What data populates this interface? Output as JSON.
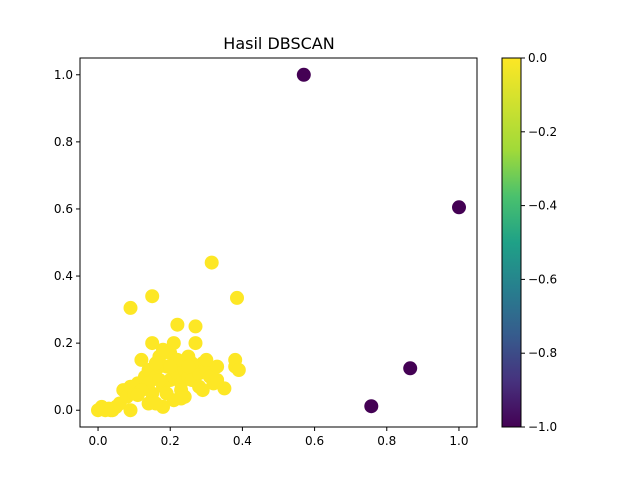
{
  "chart_data": {
    "type": "scatter",
    "title": "Hasil DBSCAN",
    "xlabel": "",
    "ylabel": "",
    "xlim": [
      -0.05,
      1.05
    ],
    "ylim": [
      -0.05,
      1.05
    ],
    "xticks": [
      "0.0",
      "0.2",
      "0.4",
      "0.6",
      "0.8",
      "1.0"
    ],
    "yticks": [
      "0.0",
      "0.2",
      "0.4",
      "0.6",
      "0.8",
      "1.0"
    ],
    "grid": false,
    "colormap": "viridis",
    "colorbar": {
      "range": [
        -1.0,
        0.0
      ],
      "ticks": [
        "0.0",
        "−0.2",
        "−0.4",
        "−0.6",
        "−0.8",
        "−1.0"
      ]
    },
    "series": [
      {
        "cluster": 0,
        "color": "#fde725",
        "points": [
          [
            0.0,
            0.0
          ],
          [
            0.01,
            0.01
          ],
          [
            0.02,
            0.0
          ],
          [
            0.03,
            0.005
          ],
          [
            0.04,
            0.0
          ],
          [
            0.05,
            0.01
          ],
          [
            0.015,
            0.005
          ],
          [
            0.035,
            0.0
          ],
          [
            0.09,
            0.0
          ],
          [
            0.06,
            0.02
          ],
          [
            0.07,
            0.06
          ],
          [
            0.08,
            0.04
          ],
          [
            0.09,
            0.07
          ],
          [
            0.1,
            0.05
          ],
          [
            0.11,
            0.08
          ],
          [
            0.12,
            0.15
          ],
          [
            0.13,
            0.1
          ],
          [
            0.14,
            0.12
          ],
          [
            0.15,
            0.05
          ],
          [
            0.16,
            0.1
          ],
          [
            0.17,
            0.13
          ],
          [
            0.18,
            0.07
          ],
          [
            0.19,
            0.05
          ],
          [
            0.2,
            0.09
          ],
          [
            0.21,
            0.1
          ],
          [
            0.22,
            0.11
          ],
          [
            0.23,
            0.08
          ],
          [
            0.24,
            0.12
          ],
          [
            0.25,
            0.1
          ],
          [
            0.26,
            0.09
          ],
          [
            0.27,
            0.13
          ],
          [
            0.28,
            0.11
          ],
          [
            0.29,
            0.14
          ],
          [
            0.3,
            0.12
          ],
          [
            0.31,
            0.1
          ],
          [
            0.32,
            0.08
          ],
          [
            0.17,
            0.16
          ],
          [
            0.2,
            0.17
          ],
          [
            0.22,
            0.15
          ],
          [
            0.19,
            0.13
          ],
          [
            0.16,
            0.14
          ],
          [
            0.23,
            0.06
          ],
          [
            0.24,
            0.04
          ],
          [
            0.26,
            0.14
          ],
          [
            0.18,
            0.18
          ],
          [
            0.21,
            0.2
          ],
          [
            0.14,
            0.08
          ],
          [
            0.12,
            0.06
          ],
          [
            0.25,
            0.16
          ],
          [
            0.28,
            0.07
          ],
          [
            0.29,
            0.06
          ],
          [
            0.33,
            0.09
          ],
          [
            0.35,
            0.065
          ],
          [
            0.38,
            0.13
          ],
          [
            0.38,
            0.15
          ],
          [
            0.39,
            0.12
          ],
          [
            0.15,
            0.2
          ],
          [
            0.27,
            0.2
          ],
          [
            0.22,
            0.255
          ],
          [
            0.27,
            0.25
          ],
          [
            0.15,
            0.34
          ],
          [
            0.09,
            0.305
          ],
          [
            0.385,
            0.335
          ],
          [
            0.315,
            0.44
          ],
          [
            0.14,
            0.02
          ],
          [
            0.18,
            0.01
          ],
          [
            0.21,
            0.03
          ],
          [
            0.23,
            0.035
          ],
          [
            0.11,
            0.045
          ],
          [
            0.16,
            0.02
          ],
          [
            0.2,
            0.13
          ],
          [
            0.17,
            0.09
          ],
          [
            0.33,
            0.13
          ],
          [
            0.3,
            0.15
          ],
          [
            0.25,
            0.13
          ]
        ]
      },
      {
        "cluster": -1,
        "color": "#440154",
        "points": [
          [
            0.57,
            1.0
          ],
          [
            1.0,
            0.605
          ],
          [
            0.865,
            0.125
          ],
          [
            0.757,
            0.012
          ]
        ]
      }
    ]
  }
}
